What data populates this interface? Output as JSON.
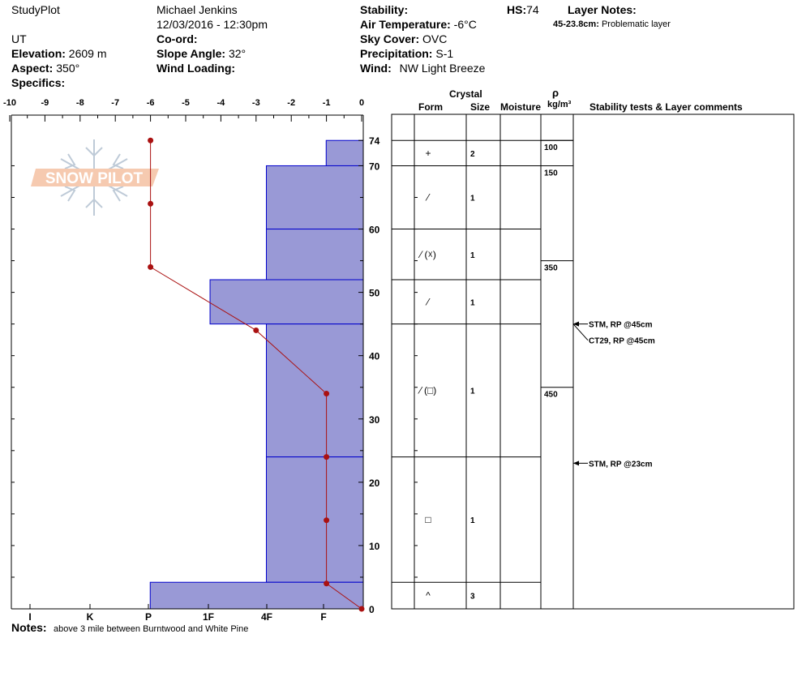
{
  "header": {
    "site_name": "StudyPlot",
    "observer": "Michael Jenkins",
    "datetime": "12/03/2016 - 12:30pm",
    "state": "UT",
    "elevation_label": "Elevation:",
    "elevation_value": "2609 m",
    "aspect_label": "Aspect:",
    "aspect_value": "350°",
    "specifics_label": "Specifics:",
    "coord_label": "Co-ord:",
    "slope_label": "Slope Angle:",
    "slope_value": "32°",
    "wind_loading_label": "Wind Loading:",
    "stability_label": "Stability:",
    "air_temp_label": "Air Temperature:",
    "air_temp_value": "-6°C",
    "sky_label": "Sky Cover:",
    "sky_value": "OVC",
    "precip_label": "Precipitation:",
    "precip_value": "S-1",
    "wind_label": "Wind:",
    "wind_value": "NW Light Breeze",
    "hs_label": "HS:",
    "hs_value": "74",
    "layer_notes_label": "Layer Notes:",
    "layer_note_range": "45-23.8cm:",
    "layer_note_text": "Problematic layer"
  },
  "logo_text": "SNOW PILOT",
  "notes": {
    "label": "Notes:",
    "text": "above 3 mile between Burntwood and White Pine"
  },
  "table_headers": {
    "crystal": "Crystal",
    "form": "Form",
    "size": "Size",
    "moisture": "Moisture",
    "rho": "ρ",
    "density_unit": "kg/m³",
    "comments": "Stability tests & Layer comments"
  },
  "colors": {
    "hardness_fill": "#9999d6",
    "hardness_border": "#0000cc",
    "temp_line": "#aa1111"
  },
  "chart_data": {
    "type": "snow-profile",
    "temp_axis_ticks": [
      "-10",
      "-9",
      "-8",
      "-7",
      "-6",
      "-5",
      "-4",
      "-3",
      "-2",
      "-1",
      "0"
    ],
    "temp_range": [
      -10,
      0
    ],
    "depth_range": [
      0,
      74
    ],
    "depth_ticks": [
      "0",
      "10",
      "20",
      "30",
      "40",
      "50",
      "60",
      "70",
      "74"
    ],
    "hardness_ticks": [
      "I",
      "K",
      "P",
      "1F",
      "4F",
      "F"
    ],
    "temperature_profile": [
      {
        "depth": 74,
        "temp": -6
      },
      {
        "depth": 64,
        "temp": -6
      },
      {
        "depth": 54,
        "temp": -6
      },
      {
        "depth": 44,
        "temp": -3
      },
      {
        "depth": 34,
        "temp": -1
      },
      {
        "depth": 24,
        "temp": -1
      },
      {
        "depth": 14,
        "temp": -1
      },
      {
        "depth": 4,
        "temp": -1
      },
      {
        "depth": 0,
        "temp": 0
      }
    ],
    "layers": [
      {
        "top": 74,
        "bottom": 70,
        "hardness": "F",
        "hardness_index": 1.1,
        "form": "+",
        "size": "2"
      },
      {
        "top": 70,
        "bottom": 60,
        "hardness": "4F",
        "hardness_index": 2.8,
        "form": "⁄",
        "size": "1"
      },
      {
        "top": 60,
        "bottom": 52,
        "hardness": "4F",
        "hardness_index": 2.8,
        "form": "⁄ (☓)",
        "size": "1"
      },
      {
        "top": 52,
        "bottom": 45,
        "hardness": "1F",
        "hardness_index": 4.4,
        "form": "⁄",
        "size": "1"
      },
      {
        "top": 45,
        "bottom": 24,
        "hardness": "4F",
        "hardness_index": 2.8,
        "form": "⁄ (□)",
        "size": "1"
      },
      {
        "top": 24,
        "bottom": 4.2,
        "hardness": "4F",
        "hardness_index": 2.8,
        "form": "□",
        "size": "1"
      },
      {
        "top": 4.2,
        "bottom": 0,
        "hardness": "P",
        "hardness_index": 6.1,
        "form": "^",
        "size": "3"
      }
    ],
    "density": [
      {
        "top": 74,
        "bottom": 70,
        "value": "100"
      },
      {
        "top": 70,
        "bottom": 55,
        "value": "150"
      },
      {
        "top": 55,
        "bottom": 35,
        "value": "350"
      },
      {
        "top": 35,
        "bottom": 0,
        "value": "450"
      }
    ],
    "stability_tests": [
      {
        "depth": 45,
        "text": "STM, RP @45cm"
      },
      {
        "depth": 45,
        "text": "CT29, RP @45cm"
      },
      {
        "depth": 23,
        "text": "STM, RP @23cm"
      }
    ]
  }
}
